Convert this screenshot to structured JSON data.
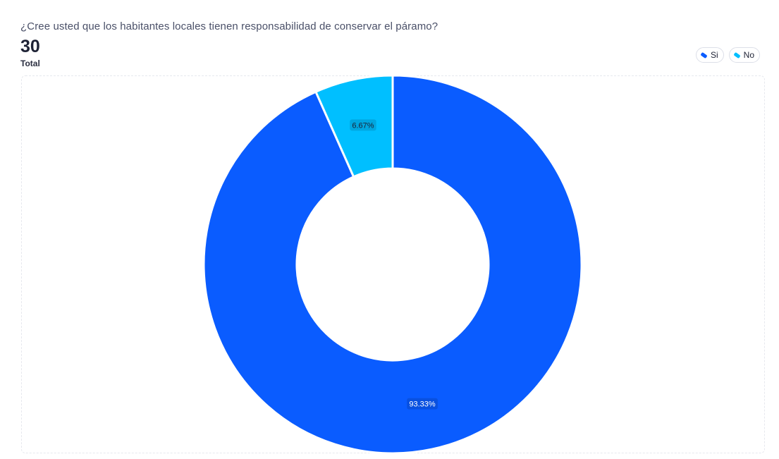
{
  "question": "¿Cree usted que los habitantes locales tienen responsabilidad de conservar el páramo?",
  "total": {
    "value": "30",
    "label": "Total"
  },
  "legend": [
    {
      "label": "Si",
      "color": "#0a5cff"
    },
    {
      "label": "No",
      "color": "#00bfff"
    }
  ],
  "chart_data": {
    "type": "pie",
    "variant": "donut",
    "categories": [
      "Si",
      "No"
    ],
    "values": [
      93.33,
      6.67
    ],
    "labels": [
      "93.33%",
      "6.67%"
    ],
    "colors": [
      "#0a5cff",
      "#00bfff"
    ],
    "title": "¿Cree usted que los habitantes locales tienen responsabilidad de conservar el páramo?",
    "legend_position": "top-right"
  }
}
